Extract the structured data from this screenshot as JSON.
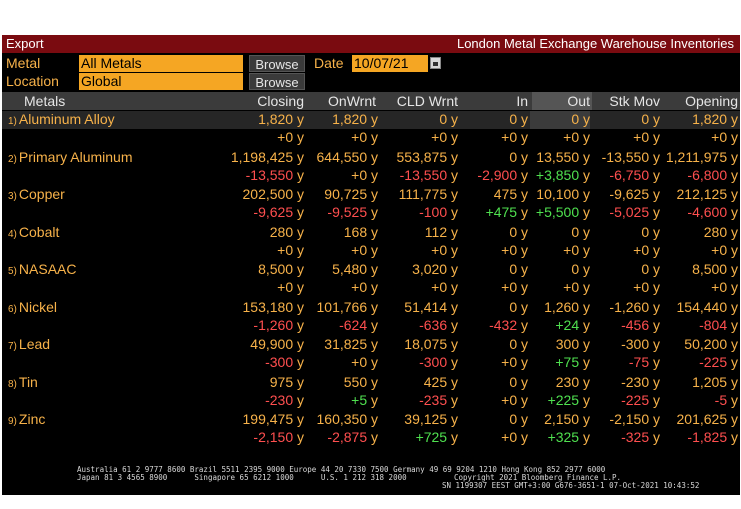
{
  "window": {
    "export_label": "Export",
    "title": "London Metal Exchange Warehouse Inventories"
  },
  "filters": {
    "metal_label": "Metal",
    "metal_value": "All Metals",
    "location_label": "Location",
    "location_value": "Global",
    "browse_label": "Browse",
    "date_label": "Date",
    "date_value": "10/07/21"
  },
  "columns": [
    "Metals",
    "Closing",
    "OnWrnt",
    "CLD Wrnt",
    "In",
    "Out",
    "Stk Mov",
    "Opening"
  ],
  "rows": [
    {
      "num": "1)",
      "name": "Aluminum Alloy",
      "main": [
        "1,820 y",
        "1,820 y",
        "0 y",
        "0 y",
        "0 y",
        "0 y",
        "1,820 y"
      ],
      "delta": [
        "+0 y",
        "+0 y",
        "+0 y",
        "+0 y",
        "+0 y",
        "+0 y",
        "+0 y"
      ]
    },
    {
      "num": "2)",
      "name": "Primary Aluminum",
      "main": [
        "1,198,425 y",
        "644,550 y",
        "553,875 y",
        "0 y",
        "13,550 y",
        "-13,550 y",
        "1,211,975 y"
      ],
      "delta": [
        "-13,550 y",
        "+0 y",
        "-13,550 y",
        "-2,900 y",
        "+3,850 y",
        "-6,750 y",
        "-6,800 y"
      ]
    },
    {
      "num": "3)",
      "name": "Copper",
      "main": [
        "202,500 y",
        "90,725 y",
        "111,775 y",
        "475 y",
        "10,100 y",
        "-9,625 y",
        "212,125 y"
      ],
      "delta": [
        "-9,625 y",
        "-9,525 y",
        "-100 y",
        "+475 y",
        "+5,500 y",
        "-5,025 y",
        "-4,600 y"
      ]
    },
    {
      "num": "4)",
      "name": "Cobalt",
      "main": [
        "280 y",
        "168 y",
        "112 y",
        "0 y",
        "0 y",
        "0 y",
        "280 y"
      ],
      "delta": [
        "+0 y",
        "+0 y",
        "+0 y",
        "+0 y",
        "+0 y",
        "+0 y",
        "+0 y"
      ]
    },
    {
      "num": "5)",
      "name": "NASAAC",
      "main": [
        "8,500 y",
        "5,480 y",
        "3,020 y",
        "0 y",
        "0 y",
        "0 y",
        "8,500 y"
      ],
      "delta": [
        "+0 y",
        "+0 y",
        "+0 y",
        "+0 y",
        "+0 y",
        "+0 y",
        "+0 y"
      ]
    },
    {
      "num": "6)",
      "name": "Nickel",
      "main": [
        "153,180 y",
        "101,766 y",
        "51,414 y",
        "0 y",
        "1,260 y",
        "-1,260 y",
        "154,440 y"
      ],
      "delta": [
        "-1,260 y",
        "-624 y",
        "-636 y",
        "-432 y",
        "+24 y",
        "-456 y",
        "-804 y"
      ]
    },
    {
      "num": "7)",
      "name": "Lead",
      "main": [
        "49,900 y",
        "31,825 y",
        "18,075 y",
        "0 y",
        "300 y",
        "-300 y",
        "50,200 y"
      ],
      "delta": [
        "-300 y",
        "+0 y",
        "-300 y",
        "+0 y",
        "+75 y",
        "-75 y",
        "-225 y"
      ]
    },
    {
      "num": "8)",
      "name": "Tin",
      "main": [
        "975 y",
        "550 y",
        "425 y",
        "0 y",
        "230 y",
        "-230 y",
        "1,205 y"
      ],
      "delta": [
        "-230 y",
        "+5 y",
        "-235 y",
        "+0 y",
        "+225 y",
        "-225 y",
        "-5 y"
      ]
    },
    {
      "num": "9)",
      "name": "Zinc",
      "main": [
        "199,475 y",
        "160,350 y",
        "39,125 y",
        "0 y",
        "2,150 y",
        "-2,150 y",
        "201,625 y"
      ],
      "delta": [
        "-2,150 y",
        "-2,875 y",
        "+725 y",
        "+0 y",
        "+325 y",
        "-325 y",
        "-1,825 y"
      ]
    }
  ],
  "footer": {
    "line1": "Australia 61 2 9777 8600 Brazil 5511 2395 9000 Europe 44 20 7330 7500 Germany 49 69 9204 1210 Hong Kong 852 2977 6000",
    "line2": "Japan 81 3 4565 8900      Singapore 65 6212 1000      U.S. 1 212 318 2000",
    "line3": "Copyright 2021 Bloomberg Finance L.P.",
    "line4": "SN 1199307 EEST GMT+3:00 G676-3651-1 07-Oct-2021 10:43:52"
  },
  "colors": {
    "orange": "#f7b24a",
    "red": "#ff4f4f",
    "green": "#4fe04f",
    "titlebar": "#7a0b10",
    "field": "#f5a623"
  }
}
